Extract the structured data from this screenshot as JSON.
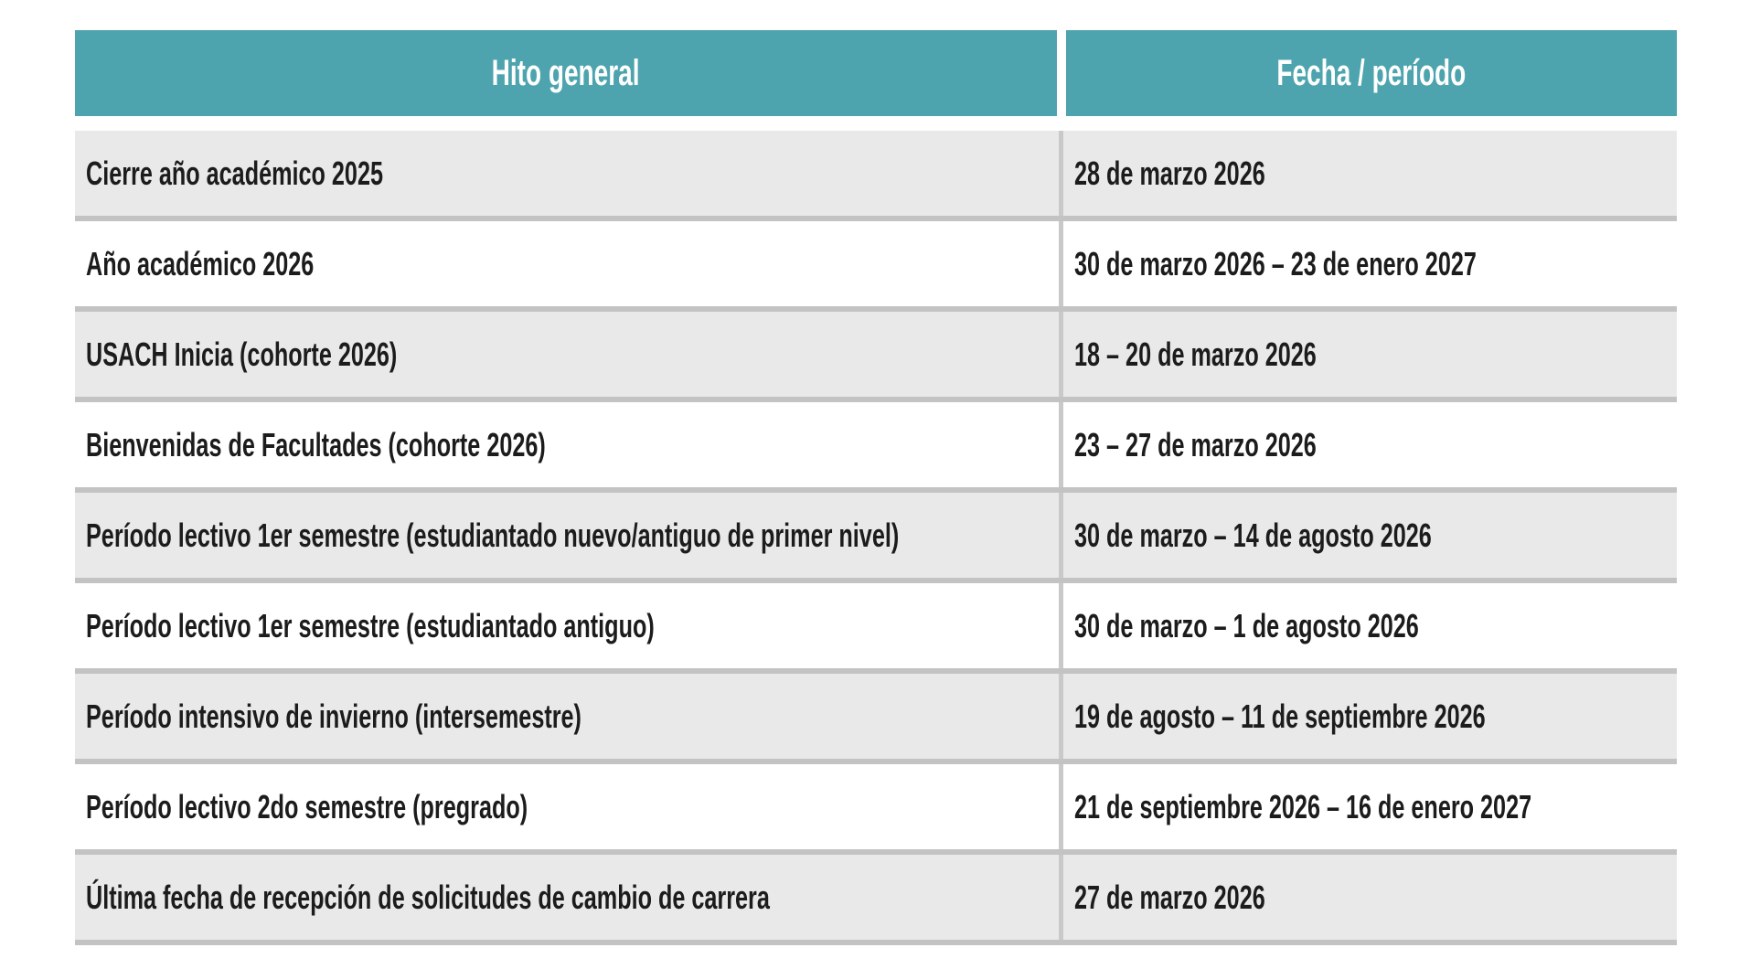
{
  "table": {
    "columns": [
      {
        "label": "Hito general"
      },
      {
        "label": "Fecha / período"
      }
    ],
    "rows": [
      {
        "hito": "Cierre año académico 2025",
        "fecha": "28 de marzo 2026"
      },
      {
        "hito": "Año académico 2026",
        "fecha": "30 de marzo 2026 – 23 de enero 2027"
      },
      {
        "hito": "USACH Inicia (cohorte 2026)",
        "fecha": "18 – 20 de marzo 2026"
      },
      {
        "hito": "Bienvenidas de Facultades (cohorte 2026)",
        "fecha": "23 – 27 de marzo 2026"
      },
      {
        "hito": "Período lectivo 1er semestre (estudiantado nuevo/antiguo de primer nivel)",
        "fecha": "30 de marzo – 14 de agosto 2026"
      },
      {
        "hito": "Período lectivo 1er semestre (estudiantado antiguo)",
        "fecha": "30 de marzo – 1 de agosto 2026"
      },
      {
        "hito": "Período intensivo de invierno (intersemestre)",
        "fecha": "19 de agosto – 11 de septiembre 2026"
      },
      {
        "hito": "Período lectivo 2do semestre (pregrado)",
        "fecha": "21 de septiembre 2026 – 16 de enero 2027"
      },
      {
        "hito": "Última fecha de recepción de solicitudes de cambio de carrera",
        "fecha": "27 de marzo 2026"
      }
    ],
    "colors": {
      "header_bg": "#4da4ae",
      "header_text": "#ffffff",
      "row_bg": "#ffffff",
      "row_alt_bg": "#e9e9e9",
      "separator": "#c3c3c3",
      "divider": "#c9c9c9",
      "text": "#1c1c1c"
    }
  }
}
